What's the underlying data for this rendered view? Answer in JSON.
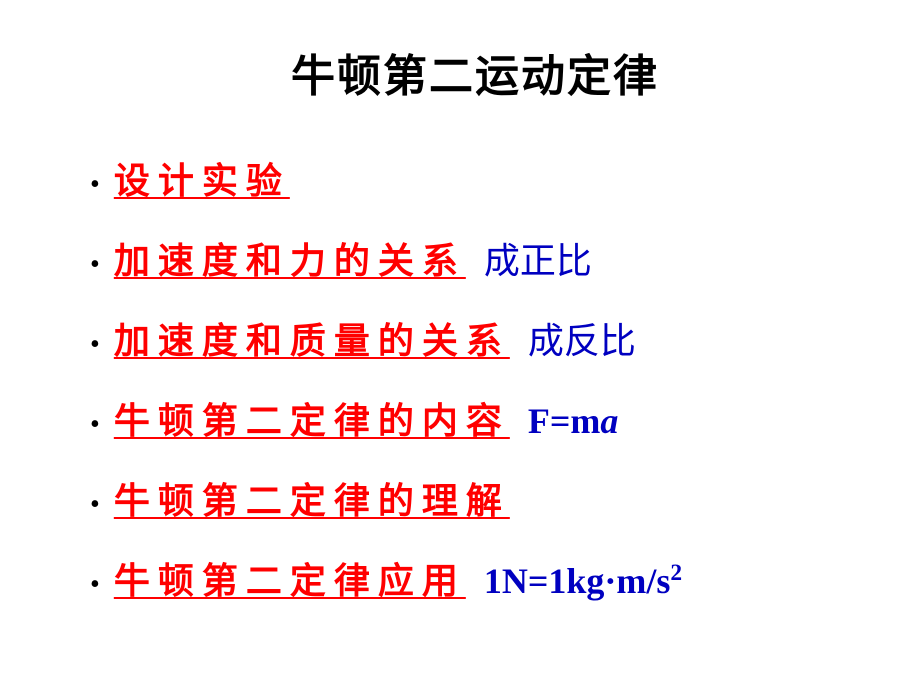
{
  "title": {
    "text": "牛顿第二运动定律",
    "fontsize": 44,
    "color": "#000000",
    "font_family": "SimHei"
  },
  "bullets": [
    {
      "label": "设计实验",
      "annotation": null
    },
    {
      "label": "加速度和力的关系",
      "annotation": "成正比"
    },
    {
      "label": "加速度和质量的关系",
      "annotation": "成反比"
    },
    {
      "label": "牛顿第二定律的内容",
      "annotation": "F=ma"
    },
    {
      "label": "牛顿第二定律的理解",
      "annotation": null
    },
    {
      "label": "牛顿第二定律应用",
      "annotation": "1N=1kg·m/s2"
    }
  ],
  "style": {
    "bullet_fontsize": 36,
    "bullet_color": "#ff0000",
    "bullet_underline": true,
    "bullet_letter_spacing": 8,
    "annotation_fontsize": 36,
    "annotation_color": "#0000c0",
    "background_color": "#ffffff",
    "dot_color": "#000000",
    "line_spacing": 28,
    "font_families": {
      "title": "SimHei",
      "bullets": "KaiTi",
      "formula": "Times New Roman"
    }
  }
}
